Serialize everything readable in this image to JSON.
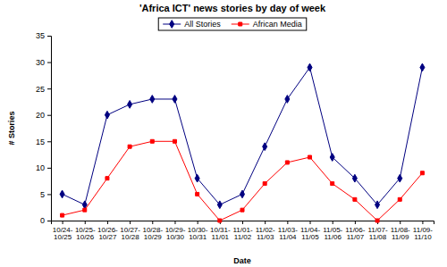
{
  "chart_data": {
    "type": "line",
    "title": "'Africa ICT' news stories by day of week",
    "x_label": "Date",
    "y_label": "# Stories",
    "categories": [
      "10/24-10/25",
      "10/25-10/26",
      "10/26-10/27",
      "10/27-10/28",
      "10/28-10/29",
      "10/29-10/30",
      "10/30-10/31",
      "10/31-11/01",
      "11/01-11/02",
      "11/02-11/03",
      "11/03-11/04",
      "11/04-11/05",
      "11/05-11/06",
      "11/06-11/07",
      "11/07-11/08",
      "11/08-11/09",
      "11/09-11/10"
    ],
    "series": [
      {
        "name": "All Stories",
        "color": "#000080",
        "marker": "diamond",
        "values": [
          5,
          3,
          20,
          22,
          23,
          23,
          8,
          3,
          5,
          14,
          23,
          29,
          12,
          8,
          3,
          8,
          29
        ]
      },
      {
        "name": "African Media",
        "color": "#ff0000",
        "marker": "square",
        "values": [
          1,
          2,
          8,
          14,
          15,
          15,
          5,
          0,
          2,
          7,
          11,
          12,
          7,
          4,
          0,
          4,
          9
        ]
      }
    ],
    "ylim": [
      0,
      35
    ],
    "yticks": [
      0,
      5,
      10,
      15,
      20,
      25,
      30,
      35
    ],
    "grid": false,
    "legend": "top"
  }
}
